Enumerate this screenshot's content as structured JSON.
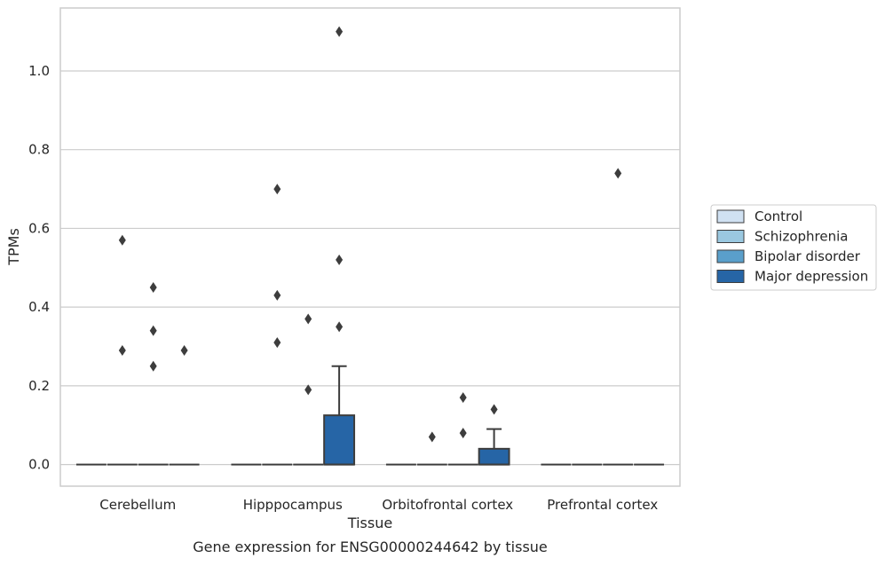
{
  "chart_data": {
    "type": "box",
    "title": "",
    "caption": "Gene expression for ENSG00000244642 by tissue",
    "xlabel": "Tissue",
    "ylabel": "TPMs",
    "categories": [
      "Cerebellum",
      "Hipppocampus",
      "Orbitofrontal cortex",
      "Prefrontal cortex"
    ],
    "ylim": [
      -0.055,
      1.16
    ],
    "yticks": [
      0.0,
      0.2,
      0.4,
      0.6,
      0.8,
      1.0
    ],
    "ytick_labels": [
      "0.0",
      "0.2",
      "0.4",
      "0.6",
      "0.8",
      "1.0"
    ],
    "grid": "horizontal",
    "legend_position": "right",
    "series": [
      {
        "name": "Control",
        "color": "#d0e1f2",
        "boxes": [
          {
            "category": "Cerebellum",
            "q1": 0,
            "median": 0,
            "q3": 0,
            "whisker_low": 0,
            "whisker_high": 0,
            "outliers": []
          },
          {
            "category": "Hipppocampus",
            "q1": 0,
            "median": 0,
            "q3": 0,
            "whisker_low": 0,
            "whisker_high": 0,
            "outliers": []
          },
          {
            "category": "Orbitofrontal cortex",
            "q1": 0,
            "median": 0,
            "q3": 0,
            "whisker_low": 0,
            "whisker_high": 0,
            "outliers": []
          },
          {
            "category": "Prefrontal cortex",
            "q1": 0,
            "median": 0,
            "q3": 0,
            "whisker_low": 0,
            "whisker_high": 0,
            "outliers": []
          }
        ]
      },
      {
        "name": "Schizophrenia",
        "color": "#9ac8e0",
        "boxes": [
          {
            "category": "Cerebellum",
            "q1": 0,
            "median": 0,
            "q3": 0,
            "whisker_low": 0,
            "whisker_high": 0,
            "outliers": [
              0.57,
              0.29
            ]
          },
          {
            "category": "Hipppocampus",
            "q1": 0,
            "median": 0,
            "q3": 0,
            "whisker_low": 0,
            "whisker_high": 0,
            "outliers": [
              0.7,
              0.43,
              0.31
            ]
          },
          {
            "category": "Orbitofrontal cortex",
            "q1": 0,
            "median": 0,
            "q3": 0,
            "whisker_low": 0,
            "whisker_high": 0,
            "outliers": [
              0.07
            ]
          },
          {
            "category": "Prefrontal cortex",
            "q1": 0,
            "median": 0,
            "q3": 0,
            "whisker_low": 0,
            "whisker_high": 0,
            "outliers": []
          }
        ]
      },
      {
        "name": "Bipolar disorder",
        "color": "#5a9fcb",
        "boxes": [
          {
            "category": "Cerebellum",
            "q1": 0,
            "median": 0,
            "q3": 0,
            "whisker_low": 0,
            "whisker_high": 0,
            "outliers": [
              0.45,
              0.34,
              0.25
            ]
          },
          {
            "category": "Hipppocampus",
            "q1": 0,
            "median": 0,
            "q3": 0,
            "whisker_low": 0,
            "whisker_high": 0,
            "outliers": [
              0.37,
              0.19
            ]
          },
          {
            "category": "Orbitofrontal cortex",
            "q1": 0,
            "median": 0,
            "q3": 0,
            "whisker_low": 0,
            "whisker_high": 0,
            "outliers": [
              0.17,
              0.08
            ]
          },
          {
            "category": "Prefrontal cortex",
            "q1": 0,
            "median": 0,
            "q3": 0,
            "whisker_low": 0,
            "whisker_high": 0,
            "outliers": [
              0.74
            ]
          }
        ]
      },
      {
        "name": "Major depression",
        "color": "#2665a6",
        "boxes": [
          {
            "category": "Cerebellum",
            "q1": 0,
            "median": 0,
            "q3": 0,
            "whisker_low": 0,
            "whisker_high": 0,
            "outliers": [
              0.29
            ]
          },
          {
            "category": "Hipppocampus",
            "q1": 0,
            "median": 0,
            "q3": 0.125,
            "whisker_low": 0,
            "whisker_high": 0.25,
            "outliers": [
              1.1,
              0.52,
              0.35
            ]
          },
          {
            "category": "Orbitofrontal cortex",
            "q1": 0,
            "median": 0,
            "q3": 0.04,
            "whisker_low": 0,
            "whisker_high": 0.09,
            "outliers": [
              0.14
            ]
          },
          {
            "category": "Prefrontal cortex",
            "q1": 0,
            "median": 0,
            "q3": 0,
            "whisker_low": 0,
            "whisker_high": 0,
            "outliers": []
          }
        ]
      }
    ]
  }
}
